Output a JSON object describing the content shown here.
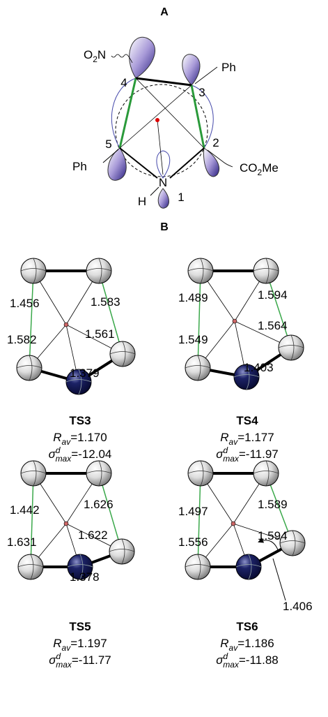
{
  "panel_a": {
    "title": "A",
    "labels": [
      [
        "O",
        "2",
        "N"
      ],
      [
        "Ph"
      ],
      [
        "4"
      ],
      [
        "3"
      ],
      [
        "5"
      ],
      [
        "2"
      ],
      [
        "Ph"
      ],
      [
        "CO",
        "2",
        "Me"
      ],
      [
        "N"
      ],
      [
        "H"
      ],
      [
        "1"
      ]
    ]
  },
  "panel_b": {
    "title": "B",
    "structures": [
      {
        "name": "TS3",
        "bonds": [
          "1.456",
          "1.583",
          "1.582",
          "1.561",
          "1.379"
        ],
        "r_av": {
          "symbol": "R",
          "subscript": "av",
          "value": "=1.170"
        },
        "sigma": {
          "symbol": "σ",
          "superscript": "d",
          "subscript": "max",
          "value": "=-12.04"
        }
      },
      {
        "name": "TS4",
        "bonds": [
          "1.489",
          "1.594",
          "1.549",
          "1.564",
          "1.403"
        ],
        "r_av": {
          "symbol": "R",
          "subscript": "av",
          "value": "=1.177"
        },
        "sigma": {
          "symbol": "σ",
          "superscript": "d",
          "subscript": "max",
          "value": "=-11.97"
        }
      },
      {
        "name": "TS5",
        "bonds": [
          "1.442",
          "1.626",
          "1.631",
          "1.622",
          "1.378"
        ],
        "r_av": {
          "symbol": "R",
          "subscript": "av",
          "value": "=1.197"
        },
        "sigma": {
          "symbol": "σ",
          "superscript": "d",
          "subscript": "max",
          "value": "=-11.77"
        }
      },
      {
        "name": "TS6",
        "bonds": [
          "1.497",
          "1.589",
          "1.556",
          "1.594",
          "1.406"
        ],
        "r_av": {
          "symbol": "R",
          "subscript": "av",
          "value": "=1.186"
        },
        "sigma": {
          "symbol": "σ",
          "superscript": "d",
          "subscript": "max",
          "value": "=-11.88"
        }
      }
    ]
  }
}
